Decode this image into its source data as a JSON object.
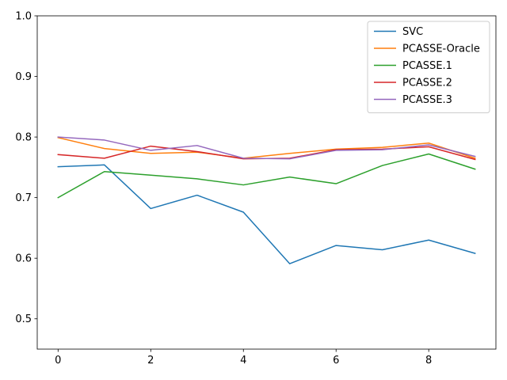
{
  "chart_data": {
    "type": "line",
    "x": [
      0,
      1,
      2,
      3,
      4,
      5,
      6,
      7,
      8,
      9
    ],
    "xlim": [
      -0.45,
      9.45
    ],
    "ylim": [
      0.45,
      1.0
    ],
    "xticks": [
      0,
      2,
      4,
      6,
      8
    ],
    "yticks": [
      0.5,
      0.6,
      0.7,
      0.8,
      0.9,
      1.0
    ],
    "xtick_labels": [
      "0",
      "2",
      "4",
      "6",
      "8"
    ],
    "ytick_labels": [
      "0.5",
      "0.6",
      "0.7",
      "0.8",
      "0.9",
      "1.0"
    ],
    "grid": false,
    "legend_position": "top-right",
    "series": [
      {
        "name": "SVC",
        "color": "#1f77b4",
        "values": [
          0.751,
          0.754,
          0.682,
          0.704,
          0.676,
          0.591,
          0.621,
          0.614,
          0.63,
          0.608
        ]
      },
      {
        "name": "PCASSE-Oracle",
        "color": "#ff7f0e",
        "values": [
          0.799,
          0.781,
          0.773,
          0.775,
          0.765,
          0.773,
          0.78,
          0.783,
          0.79,
          0.765
        ]
      },
      {
        "name": "PCASSE.1",
        "color": "#2ca02c",
        "values": [
          0.7,
          0.743,
          0.737,
          0.731,
          0.721,
          0.734,
          0.723,
          0.753,
          0.772,
          0.747
        ]
      },
      {
        "name": "PCASSE.2",
        "color": "#d62728",
        "values": [
          0.771,
          0.765,
          0.785,
          0.776,
          0.764,
          0.765,
          0.779,
          0.78,
          0.784,
          0.763
        ]
      },
      {
        "name": "PCASSE.3",
        "color": "#9467bd",
        "values": [
          0.8,
          0.795,
          0.778,
          0.786,
          0.765,
          0.764,
          0.778,
          0.779,
          0.787,
          0.768
        ]
      }
    ]
  }
}
